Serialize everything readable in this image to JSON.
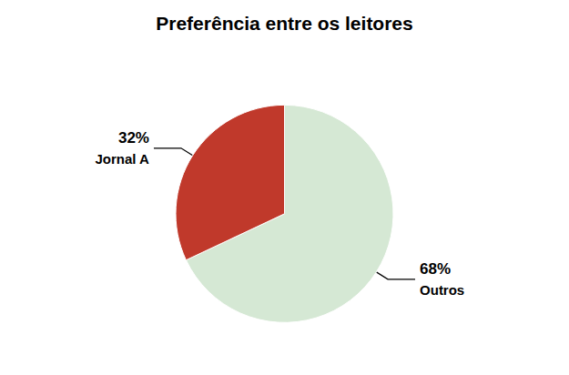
{
  "chart_data": {
    "type": "pie",
    "title": "Preferência entre os leitores",
    "categories": [
      "Outros",
      "Jornal A"
    ],
    "values": [
      68,
      32
    ],
    "value_labels": [
      "68%",
      "32%"
    ],
    "data_labels": true,
    "colors": [
      "#d5e8d4",
      "#c0392b"
    ]
  }
}
